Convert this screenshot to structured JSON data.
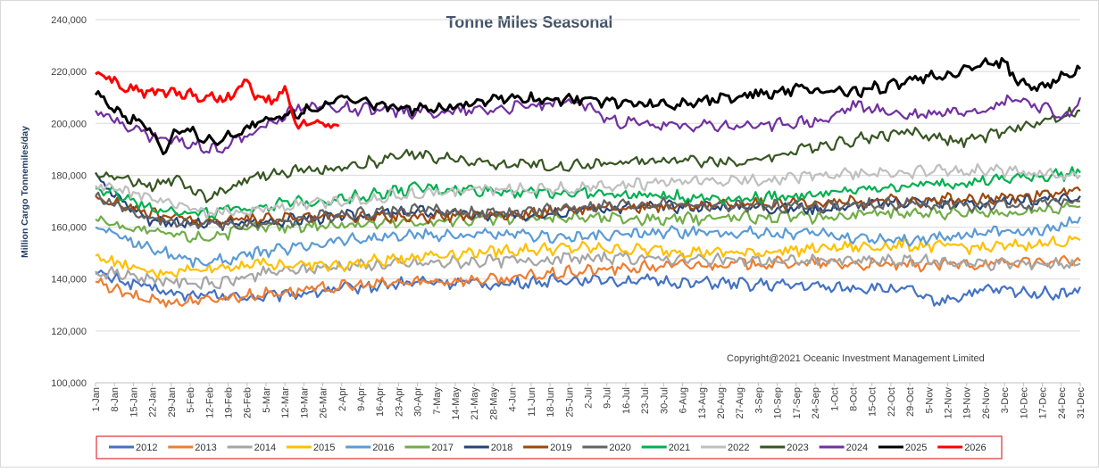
{
  "chart_data": {
    "type": "line",
    "title": "Tonne Miles Seasonal",
    "ylabel": "Million Cargo Tonnemiles/day",
    "xlabel": "",
    "ylim": [
      100000,
      240000
    ],
    "ytick_labels": [
      "100,000",
      "120,000",
      "140,000",
      "160,000",
      "180,000",
      "200,000",
      "220,000",
      "240,000"
    ],
    "ytick_values": [
      100000,
      120000,
      140000,
      160000,
      180000,
      200000,
      220000,
      240000
    ],
    "x_tick_labels": [
      "1-Jan",
      "8-Jan",
      "15-Jan",
      "22-Jan",
      "29-Jan",
      "5-Feb",
      "12-Feb",
      "19-Feb",
      "26-Feb",
      "5-Mar",
      "12-Mar",
      "19-Mar",
      "26-Mar",
      "2-Apr",
      "9-Apr",
      "16-Apr",
      "23-Apr",
      "30-Apr",
      "7-May",
      "14-May",
      "21-May",
      "28-May",
      "4-Jun",
      "11-Jun",
      "18-Jun",
      "25-Jun",
      "2-Jul",
      "9-Jul",
      "16-Jul",
      "23-Jul",
      "30-Jul",
      "6-Aug",
      "13-Aug",
      "20-Aug",
      "27-Aug",
      "3-Sep",
      "10-Sep",
      "17-Sep",
      "24-Sep",
      "1-Oct",
      "8-Oct",
      "15-Oct",
      "22-Oct",
      "29-Oct",
      "5-Nov",
      "12-Nov",
      "19-Nov",
      "26-Nov",
      "3-Dec",
      "10-Dec",
      "17-Dec",
      "24-Dec",
      "31-Dec"
    ],
    "x_day_range": [
      0,
      364
    ],
    "grid": true,
    "legend_position": "bottom",
    "annotation": "Copyright@2021 Oceanic Investment Management Limited",
    "series": [
      {
        "name": "2012",
        "color": "#4472c4",
        "days": [
          0,
          30,
          60,
          90,
          120,
          150,
          180,
          210,
          240,
          270,
          300,
          310,
          330,
          360,
          364
        ],
        "values": [
          142000,
          134000,
          133000,
          136000,
          139000,
          138000,
          140000,
          139000,
          138000,
          137000,
          136000,
          131000,
          136000,
          134000,
          137000
        ]
      },
      {
        "name": "2013",
        "color": "#ed7d31",
        "days": [
          0,
          14,
          30,
          60,
          90,
          120,
          150,
          180,
          210,
          240,
          270,
          300,
          330,
          364
        ],
        "values": [
          139000,
          133000,
          131000,
          134000,
          137000,
          139000,
          140000,
          143000,
          145000,
          146000,
          146000,
          145000,
          146000,
          147000
        ]
      },
      {
        "name": "2014",
        "color": "#a5a5a5",
        "days": [
          0,
          30,
          45,
          60,
          90,
          120,
          150,
          180,
          210,
          240,
          270,
          300,
          330,
          364
        ],
        "values": [
          143000,
          139000,
          138000,
          142000,
          145000,
          146000,
          147000,
          148000,
          148000,
          147000,
          147000,
          147000,
          146000,
          146000
        ]
      },
      {
        "name": "2015",
        "color": "#ffc000",
        "days": [
          0,
          20,
          40,
          60,
          90,
          120,
          150,
          180,
          210,
          240,
          270,
          300,
          330,
          364
        ],
        "values": [
          149000,
          142000,
          144000,
          146000,
          145000,
          149000,
          151000,
          152000,
          151000,
          150000,
          152000,
          153000,
          152000,
          155000
        ]
      },
      {
        "name": "2016",
        "color": "#5b9bd5",
        "days": [
          0,
          20,
          40,
          60,
          90,
          120,
          150,
          180,
          210,
          240,
          270,
          300,
          330,
          350,
          364
        ],
        "values": [
          160000,
          152000,
          146000,
          150000,
          155000,
          157000,
          157000,
          156000,
          158000,
          158000,
          157000,
          155000,
          158000,
          158000,
          164000
        ]
      },
      {
        "name": "2017",
        "color": "#70ad47",
        "days": [
          0,
          20,
          40,
          60,
          90,
          120,
          150,
          180,
          210,
          240,
          270,
          300,
          330,
          364
        ],
        "values": [
          163000,
          158000,
          156000,
          160000,
          161000,
          162000,
          163000,
          164000,
          163000,
          164000,
          164000,
          166000,
          165000,
          168000
        ]
      },
      {
        "name": "2018",
        "color": "#264478",
        "days": [
          0,
          7,
          20,
          40,
          60,
          90,
          120,
          150,
          180,
          210,
          240,
          270,
          300,
          330,
          364
        ],
        "values": [
          181000,
          172000,
          163000,
          161000,
          162000,
          164000,
          166000,
          164000,
          167000,
          168000,
          168000,
          167000,
          170000,
          169000,
          172000
        ]
      },
      {
        "name": "2019",
        "color": "#9e480e",
        "days": [
          0,
          20,
          40,
          60,
          90,
          120,
          150,
          180,
          210,
          240,
          270,
          300,
          330,
          364
        ],
        "values": [
          172000,
          165000,
          162000,
          163000,
          164000,
          164000,
          165000,
          167000,
          168000,
          169000,
          170000,
          170000,
          171000,
          174000
        ]
      },
      {
        "name": "2020",
        "color": "#636363",
        "days": [
          0,
          20,
          40,
          60,
          90,
          120,
          150,
          180,
          210,
          240,
          270,
          300,
          330,
          364
        ],
        "values": [
          172000,
          163000,
          161000,
          161000,
          165000,
          167000,
          165000,
          168000,
          169000,
          168000,
          168000,
          169000,
          168000,
          170000
        ]
      },
      {
        "name": "2021",
        "color": "#00b050",
        "days": [
          0,
          20,
          40,
          60,
          90,
          120,
          150,
          180,
          210,
          240,
          270,
          300,
          330,
          364
        ],
        "values": [
          175000,
          168000,
          165000,
          168000,
          171000,
          175000,
          174000,
          173000,
          172000,
          171000,
          173000,
          176000,
          178000,
          181000
        ]
      },
      {
        "name": "2022",
        "color": "#bfbfbf",
        "days": [
          0,
          20,
          40,
          60,
          90,
          120,
          150,
          180,
          210,
          240,
          270,
          300,
          330,
          364
        ],
        "values": [
          176000,
          171000,
          165000,
          167000,
          170000,
          173000,
          175000,
          175000,
          177000,
          178000,
          180000,
          181000,
          182000,
          180000
        ]
      },
      {
        "name": "2023",
        "color": "#375623",
        "days": [
          0,
          20,
          30,
          40,
          60,
          90,
          120,
          150,
          180,
          210,
          240,
          270,
          300,
          320,
          330,
          364
        ],
        "values": [
          181000,
          176000,
          179000,
          171000,
          180000,
          183000,
          188000,
          184000,
          184000,
          186000,
          185000,
          192000,
          197000,
          193000,
          195000,
          205000
        ]
      },
      {
        "name": "2024",
        "color": "#7030a0",
        "days": [
          0,
          10,
          20,
          30,
          45,
          60,
          75,
          90,
          120,
          150,
          180,
          190,
          210,
          240,
          270,
          280,
          300,
          330,
          340,
          360,
          364
        ],
        "values": [
          205000,
          200000,
          195000,
          193000,
          190000,
          197000,
          207000,
          206000,
          204000,
          206000,
          208000,
          201000,
          199000,
          199000,
          201000,
          207000,
          203000,
          206000,
          210000,
          202000,
          210000
        ]
      },
      {
        "name": "2025",
        "color": "#000000",
        "days": [
          0,
          10,
          20,
          25,
          30,
          45,
          60,
          80,
          90,
          120,
          150,
          180,
          210,
          240,
          260,
          280,
          300,
          320,
          335,
          340,
          350,
          364
        ],
        "values": [
          211000,
          203000,
          199000,
          188000,
          198000,
          193000,
          200000,
          206000,
          209000,
          205000,
          210000,
          209000,
          207000,
          211000,
          213000,
          212000,
          216000,
          220000,
          224000,
          217000,
          214000,
          221000
        ]
      },
      {
        "name": "2026",
        "color": "#ff0000",
        "days": [
          0,
          10,
          20,
          30,
          40,
          50,
          55,
          60,
          65,
          70,
          75,
          80,
          85,
          90
        ],
        "values": [
          219000,
          214000,
          212000,
          212000,
          210000,
          210000,
          216000,
          210000,
          208000,
          212000,
          199000,
          200000,
          199000,
          199000
        ]
      }
    ]
  }
}
